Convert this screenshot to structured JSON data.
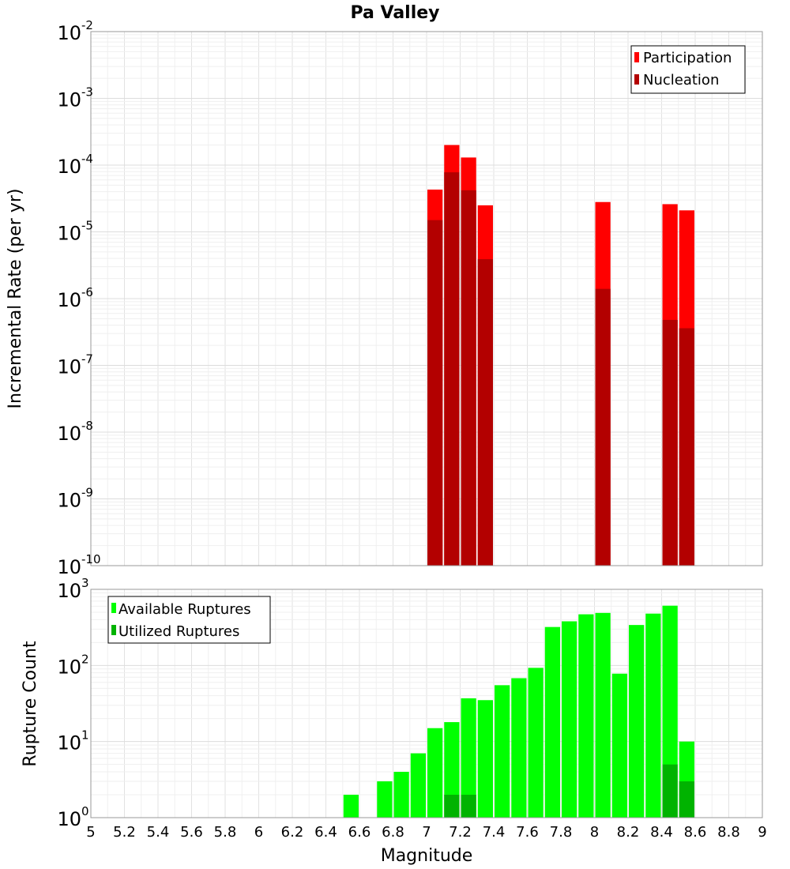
{
  "title": "Pa Valley",
  "xlabel": "Magnitude",
  "chart_data": [
    {
      "type": "bar",
      "name": "rate-panel",
      "ylabel": "Incremental Rate (per yr)",
      "yscale": "log",
      "ylim_exp": [
        -10,
        -2
      ],
      "xlim": [
        5,
        9
      ],
      "bin_width": 0.1,
      "grid": true,
      "legend_position": "top-right",
      "series": [
        {
          "name": "Participation",
          "color": "#ff0000",
          "x": [
            7.05,
            7.15,
            7.25,
            7.35,
            8.05,
            8.45,
            8.55
          ],
          "values": [
            4.3e-05,
            0.0002,
            0.00013,
            2.5e-05,
            2.8e-05,
            2.6e-05,
            2.1e-05
          ]
        },
        {
          "name": "Nucleation",
          "color": "#b30000",
          "x": [
            7.05,
            7.15,
            7.25,
            7.35,
            8.05,
            8.45,
            8.55
          ],
          "values": [
            1.5e-05,
            7.8e-05,
            4.2e-05,
            3.9e-06,
            1.4e-06,
            4.8e-07,
            3.6e-07
          ]
        }
      ]
    },
    {
      "type": "bar",
      "name": "count-panel",
      "ylabel": "Rupture Count",
      "yscale": "log",
      "ylim_exp": [
        0,
        3
      ],
      "xlim": [
        5,
        9
      ],
      "bin_width": 0.1,
      "grid": true,
      "legend_position": "top-left",
      "series": [
        {
          "name": "Available Ruptures",
          "color": "#00ff00",
          "x": [
            6.55,
            6.75,
            6.85,
            6.95,
            7.05,
            7.15,
            7.25,
            7.35,
            7.45,
            7.55,
            7.65,
            7.75,
            7.85,
            7.95,
            8.05,
            8.15,
            8.25,
            8.35,
            8.45,
            8.55
          ],
          "values": [
            2,
            3,
            4,
            7,
            15,
            18,
            37,
            35,
            55,
            68,
            93,
            320,
            380,
            470,
            490,
            78,
            340,
            480,
            610,
            10
          ]
        },
        {
          "name": "Utilized Ruptures",
          "color": "#00b300",
          "x": [
            7.05,
            7.15,
            7.25,
            7.35,
            8.05,
            8.45,
            8.55
          ],
          "values": [
            1,
            2,
            2,
            1,
            1,
            5,
            3
          ]
        }
      ]
    }
  ],
  "x_ticks": [
    "5",
    "5.2",
    "5.4",
    "5.6",
    "5.8",
    "6",
    "6.2",
    "6.4",
    "6.6",
    "6.8",
    "7",
    "7.2",
    "7.4",
    "7.6",
    "7.8",
    "8",
    "8.2",
    "8.4",
    "8.6",
    "8.8",
    "9"
  ],
  "y_ticks_top": [
    {
      "base": "10",
      "exp": "-10"
    },
    {
      "base": "10",
      "exp": "-9"
    },
    {
      "base": "10",
      "exp": "-8"
    },
    {
      "base": "10",
      "exp": "-7"
    },
    {
      "base": "10",
      "exp": "-6"
    },
    {
      "base": "10",
      "exp": "-5"
    },
    {
      "base": "10",
      "exp": "-4"
    },
    {
      "base": "10",
      "exp": "-3"
    },
    {
      "base": "10",
      "exp": "-2"
    }
  ],
  "y_ticks_bottom": [
    {
      "base": "10",
      "exp": "0"
    },
    {
      "base": "10",
      "exp": "1"
    },
    {
      "base": "10",
      "exp": "2"
    },
    {
      "base": "10",
      "exp": "3"
    }
  ]
}
